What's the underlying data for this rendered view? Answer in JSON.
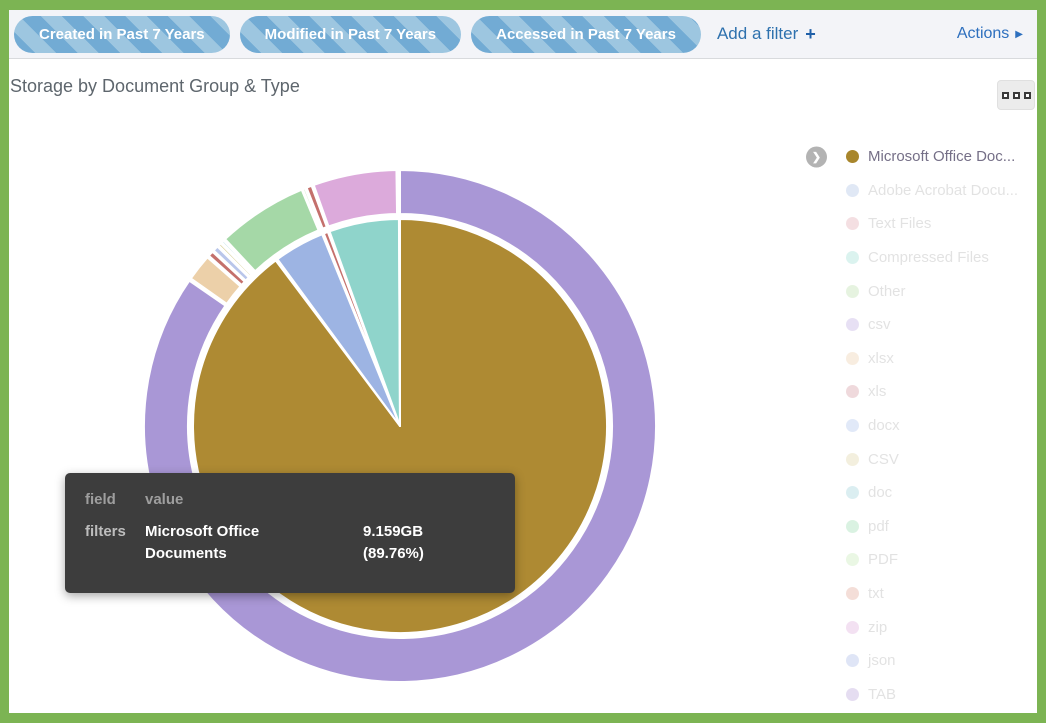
{
  "page": {
    "frame_color": "#7cb453",
    "topbar_background": "#f3f4f8"
  },
  "filter_bar": {
    "pills": [
      {
        "label": "Created in Past 7 Years"
      },
      {
        "label": "Modified in Past 7 Years"
      },
      {
        "label": "Accessed in Past 7 Years"
      }
    ],
    "pill_colors": {
      "stripe_dark": "#72abd4",
      "stripe_light": "#9dc6e0",
      "text": "#ffffff"
    },
    "add_filter": {
      "label": "Add a filter",
      "icon": "+",
      "color": "#2e71ae"
    },
    "actions": {
      "label": "Actions",
      "icon": "▶",
      "color": "#2d6fbe"
    }
  },
  "panel": {
    "title": "Storage by Document Group & Type",
    "menu_icon": "three-squares"
  },
  "legend": {
    "items": [
      {
        "label": "Microsoft Office Doc...",
        "color": "#a8862c",
        "active": true,
        "drill_icon": "❯"
      },
      {
        "label": "Adobe Acrobat Docu...",
        "color": "#92aede",
        "active": false
      },
      {
        "label": "Text Files",
        "color": "#d98e9b",
        "active": false
      },
      {
        "label": "Compressed Files",
        "color": "#82d6c9",
        "active": false
      },
      {
        "label": "Other",
        "color": "#a8d793",
        "active": false
      },
      {
        "label": "csv",
        "color": "#ab93d9",
        "active": false
      },
      {
        "label": "xlsx",
        "color": "#e8c193",
        "active": false
      },
      {
        "label": "xls",
        "color": "#c87983",
        "active": false
      },
      {
        "label": "docx",
        "color": "#97b1e8",
        "active": false
      },
      {
        "label": "CSV",
        "color": "#d6c98a",
        "active": false
      },
      {
        "label": "doc",
        "color": "#7fc4cf",
        "active": false
      },
      {
        "label": "pdf",
        "color": "#7ed49a",
        "active": false
      },
      {
        "label": "PDF",
        "color": "#b5e3a0",
        "active": false
      },
      {
        "label": "txt",
        "color": "#d88a76",
        "active": false
      },
      {
        "label": "zip",
        "color": "#d795d3",
        "active": false
      },
      {
        "label": "json",
        "color": "#8fa3e0",
        "active": false
      },
      {
        "label": "TAB",
        "color": "#a687cf",
        "active": false
      }
    ]
  },
  "tooltip": {
    "header": {
      "field": "field",
      "value": "value"
    },
    "row": {
      "field": "filters",
      "value": "Microsoft Office Documents",
      "amount": "9.159GB",
      "percent": "(89.76%)"
    }
  },
  "chart_data": {
    "type": "pie",
    "subtype": "sunburst-two-ring",
    "title": "Storage by Document Group & Type",
    "highlighted_slice": {
      "label": "Microsoft Office Documents",
      "value": "9.159GB",
      "percent": 89.76
    },
    "angles_note": "start/end degrees measured clockwise from 12 o'clock",
    "rings": [
      {
        "name": "document-group",
        "position": "inner",
        "slices": [
          {
            "label": "Microsoft Office Documents",
            "color": "#ae8a33",
            "start_deg": 0,
            "end_deg": 323.1,
            "percent": 89.76,
            "value": "9.159GB"
          },
          {
            "label": "Adobe Acrobat Documents",
            "color": "#9db4e3",
            "start_deg": 323.7,
            "end_deg": 337.9,
            "percent_est": 3.9
          },
          {
            "label": "Text Files",
            "color": "#c4706c",
            "start_deg": 338.4,
            "end_deg": 339.6,
            "percent_est": 0.33
          },
          {
            "label": "Compressed Files",
            "color": "#8fd4cb",
            "start_deg": 340.1,
            "end_deg": 359.7,
            "percent_est": 5.4
          },
          {
            "label": "Other",
            "color": "#a8d793",
            "start_deg": 359.75,
            "end_deg": 360,
            "percent_est": 0.07
          }
        ]
      },
      {
        "name": "document-type",
        "position": "outer",
        "slices": [
          {
            "label": "csv",
            "color": "#a997d6",
            "start_deg": 0,
            "end_deg": 304.6,
            "percent_est": 84.6
          },
          {
            "label": "xlsx",
            "color": "#ecd0a9",
            "start_deg": 305.2,
            "end_deg": 311.2,
            "percent_est": 1.7
          },
          {
            "label": "xls",
            "color": "#c4706c",
            "start_deg": 311.7,
            "end_deg": 312.9,
            "percent_est": 0.33
          },
          {
            "label": "docx",
            "color": "#b9c6ea",
            "start_deg": 313.3,
            "end_deg": 314.5,
            "percent_est": 0.33
          },
          {
            "label": "CSV",
            "color": "#d8d09a",
            "start_deg": 314.9,
            "end_deg": 315.5,
            "percent_est": 0.17
          },
          {
            "label": "doc",
            "color": "#9fd0d8",
            "start_deg": 315.9,
            "end_deg": 316.4,
            "percent_est": 0.14
          },
          {
            "label": "pdf",
            "color": "#a5d8a7",
            "start_deg": 316.9,
            "end_deg": 337.4,
            "percent_est": 5.7
          },
          {
            "label": "PDF",
            "color": "#b2dfa5",
            "start_deg": 337.7,
            "end_deg": 338.2,
            "percent_est": 0.14
          },
          {
            "label": "txt",
            "color": "#c4706c",
            "start_deg": 338.6,
            "end_deg": 339.8,
            "percent_est": 0.33
          },
          {
            "label": "zip",
            "color": "#dcaadb",
            "start_deg": 340.3,
            "end_deg": 359.2,
            "percent_est": 5.25
          },
          {
            "label": "json",
            "color": "#8fa3e0",
            "start_deg": 359.35,
            "end_deg": 359.65,
            "percent_est": 0.08
          },
          {
            "label": "TAB",
            "color": "#a687cf",
            "start_deg": 359.7,
            "end_deg": 360,
            "percent_est": 0.08
          }
        ]
      }
    ],
    "legend_position": "right",
    "grid": false
  }
}
